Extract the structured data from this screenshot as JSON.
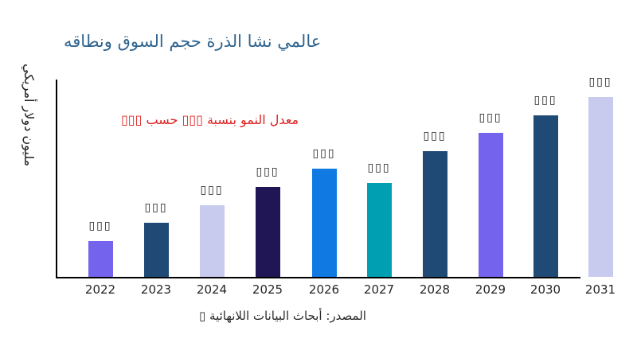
{
  "page": {
    "background_color": "#ffffff",
    "title_color": "#2f648f",
    "annotation_color": "#de2121",
    "axis_color": "#000000"
  },
  "title": {
    "text": "عالمي نشا الذرة حجم السوق ونطاقه"
  },
  "annotation": {
    "text": "معدل النمو بنسبة ▯▯▯ حسب ▯▯▯"
  },
  "y_axis_label": {
    "text": "مليون دولار أمريكي"
  },
  "source_note": {
    "text": "المصدر: أبحاث البيانات اللانهائية ▯"
  },
  "chart_data": {
    "type": "bar",
    "title": "عالمي نشا الذرة حجم السوق ونطاقه",
    "categories": [
      "2022",
      "2023",
      "2024",
      "2025",
      "2026",
      "2027",
      "2028",
      "2029",
      "2030",
      "2031"
    ],
    "values": [
      20,
      30,
      40,
      50,
      60,
      52,
      70,
      80,
      90,
      100
    ],
    "values_note": "relative heights estimated from pixels; no numeric y-axis scale is rendered, value labels above bars are unrendered placeholder boxes",
    "bar_value_label": "▯▯▯",
    "colors": [
      "#7463ed",
      "#204a76",
      "#c8cbee",
      "#201655",
      "#107ae2",
      "#019fb2",
      "#204a76",
      "#7463ed",
      "#204a76",
      "#c8cbee"
    ],
    "xlabel": "",
    "ylabel": "مليون دولار أمريكي",
    "ylim": [
      0,
      113
    ],
    "annotation": "معدل النمو بنسبة ▯▯▯ حسب ▯▯▯",
    "grid": false,
    "legend": false
  }
}
